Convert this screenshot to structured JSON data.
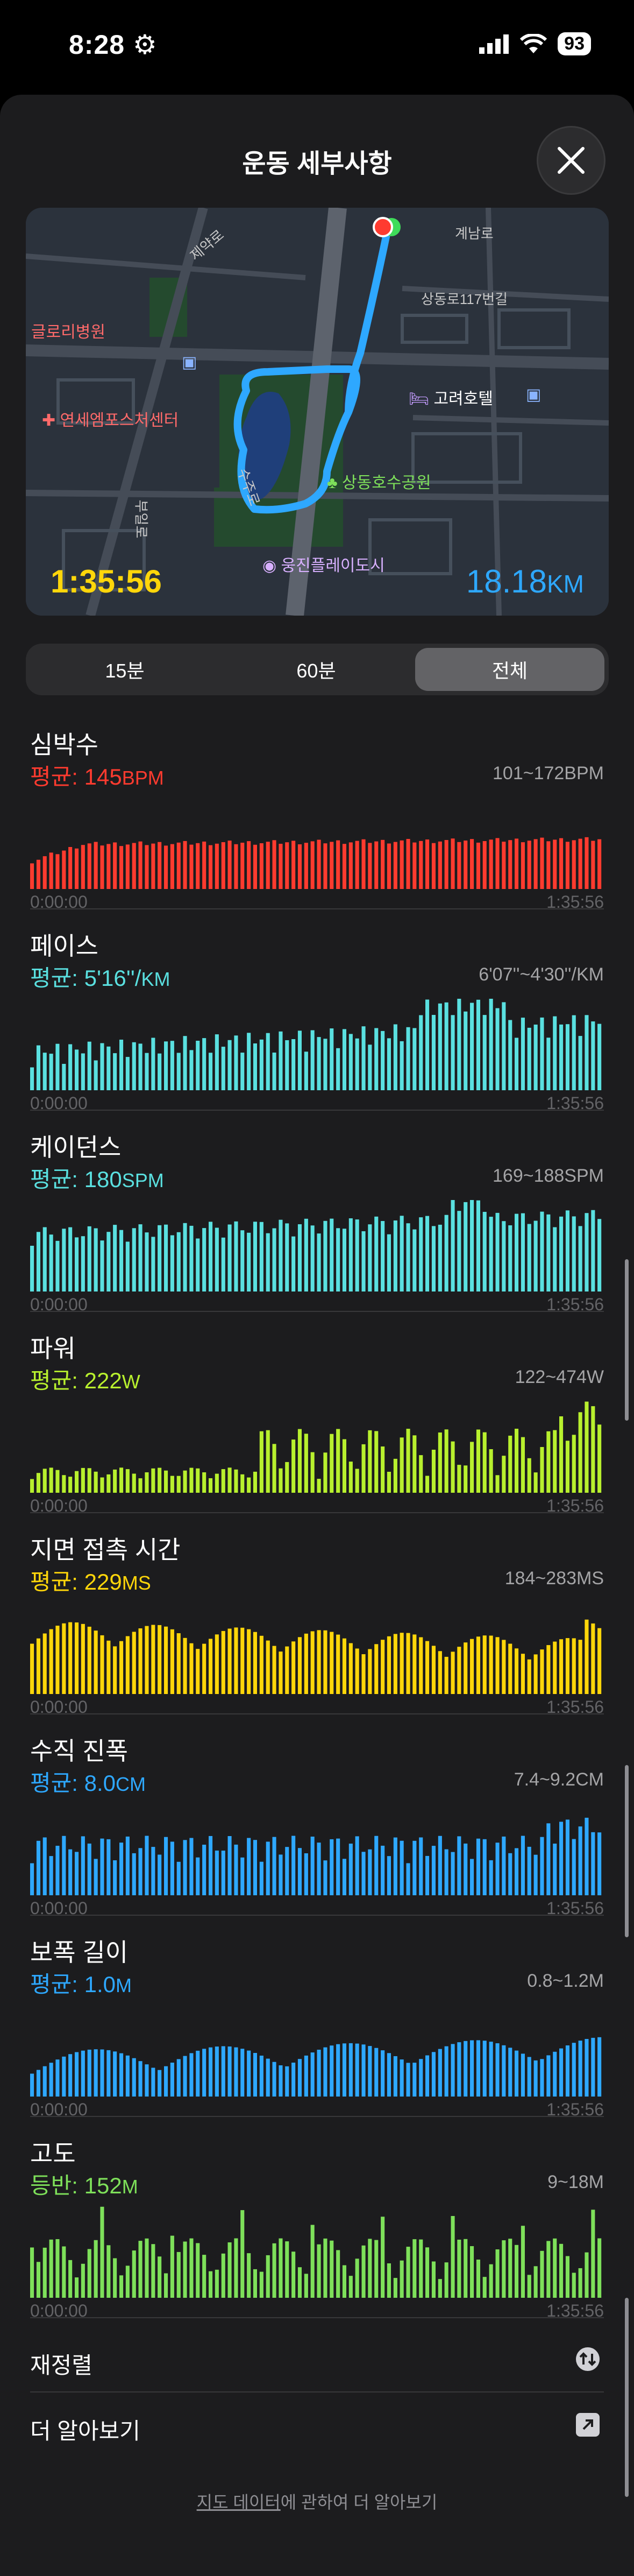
{
  "status": {
    "time": "8:28",
    "battery": "93"
  },
  "header": {
    "title": "운동 세부사항"
  },
  "map": {
    "labels": {
      "gyenam": "계남로",
      "sangdong": "상동로117번길",
      "jemin": "제약로",
      "glory": "글로리병원",
      "yonsei": "연세엠포스처센터",
      "koryo": "고려호텔",
      "park": "상동호수공원",
      "woongjin": "웅진플레이도시",
      "bugil": "부일로",
      "road2": "수주로"
    },
    "duration": "1:35:56",
    "distance": "18.18",
    "distance_unit": "KM"
  },
  "segments": [
    "15분",
    "60분",
    "전체"
  ],
  "selected_segment": "전체",
  "metrics": [
    {
      "name": "심박수",
      "avg_label": "평균:",
      "avg_value": "145",
      "avg_unit": "BPM",
      "range": "101~172BPM",
      "color": "#ff3b2f",
      "start": "0:00:00",
      "end": "1:35:56"
    },
    {
      "name": "페이스",
      "avg_label": "평균:",
      "avg_value": "5'16''/",
      "avg_unit": "KM",
      "range": "6'07''~4'30''/KM",
      "color": "#5ae0e0",
      "start": "0:00:00",
      "end": "1:35:56"
    },
    {
      "name": "케이던스",
      "avg_label": "평균:",
      "avg_value": "180",
      "avg_unit": "SPM",
      "range": "169~188SPM",
      "color": "#5ae0e0",
      "start": "0:00:00",
      "end": "1:35:56"
    },
    {
      "name": "파워",
      "avg_label": "평균:",
      "avg_value": "222",
      "avg_unit": "W",
      "range": "122~474W",
      "color": "#b8f02e",
      "start": "0:00:00",
      "end": "1:35:56"
    },
    {
      "name": "지면 접촉 시간",
      "avg_label": "평균:",
      "avg_value": "229",
      "avg_unit": "MS",
      "range": "184~283MS",
      "color": "#ffd60a",
      "start": "0:00:00",
      "end": "1:35:56"
    },
    {
      "name": "수직 진폭",
      "avg_label": "평균:",
      "avg_value": "8.0",
      "avg_unit": "CM",
      "range": "7.4~9.2CM",
      "color": "#2ea8ff",
      "start": "0:00:00",
      "end": "1:35:56"
    },
    {
      "name": "보폭 길이",
      "avg_label": "평균:",
      "avg_value": "1.0",
      "avg_unit": "M",
      "range": "0.8~1.2M",
      "color": "#2ea8ff",
      "start": "0:00:00",
      "end": "1:35:56"
    },
    {
      "name": "고도",
      "avg_label": "등반:",
      "avg_value": "152",
      "avg_unit": "M",
      "range": "9~18M",
      "color": "#7ee05a",
      "start": "0:00:00",
      "end": "1:35:56"
    }
  ],
  "rows": {
    "reorder": "재정렬",
    "learn_more": "더 알아보기"
  },
  "footer": {
    "link": "지도 데이터",
    "text": "에 관하여 더 알아보기"
  }
}
